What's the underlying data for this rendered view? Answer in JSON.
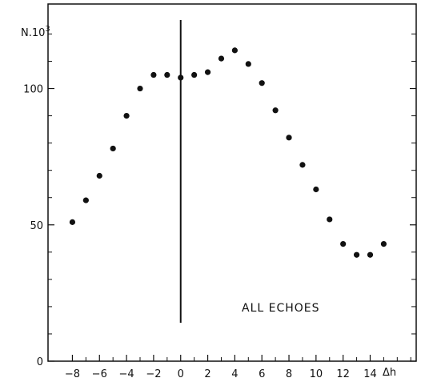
{
  "chart_data": {
    "type": "scatter",
    "title": "",
    "ylabel": "N.10",
    "ylabel_superscript": "3",
    "xlabel": "Δh",
    "xlim": [
      -9.8,
      17.4
    ],
    "ylim": [
      0,
      131
    ],
    "x_ticks": [
      -8,
      -6,
      -4,
      -2,
      0,
      2,
      4,
      6,
      8,
      10,
      12,
      14
    ],
    "x_minor_ticks": [
      -7,
      -5,
      -3,
      -1,
      1,
      3,
      5,
      7,
      9,
      11,
      13,
      15,
      16,
      17
    ],
    "y_ticks": [
      0,
      50,
      100
    ],
    "y_minor_ticks": [
      10,
      20,
      30,
      40,
      60,
      70,
      80,
      90,
      110,
      120
    ],
    "grid": false,
    "legend": "none",
    "annotation": "ALL  ECHOES",
    "vertical_line_at": 0,
    "points": [
      {
        "x": -8,
        "y": 51
      },
      {
        "x": -7,
        "y": 59
      },
      {
        "x": -6,
        "y": 68
      },
      {
        "x": -5,
        "y": 78
      },
      {
        "x": -4,
        "y": 90
      },
      {
        "x": -3,
        "y": 100
      },
      {
        "x": -2,
        "y": 105
      },
      {
        "x": -1,
        "y": 105
      },
      {
        "x": 0,
        "y": 104
      },
      {
        "x": 1,
        "y": 105
      },
      {
        "x": 2,
        "y": 106
      },
      {
        "x": 3,
        "y": 111
      },
      {
        "x": 4,
        "y": 114
      },
      {
        "x": 5,
        "y": 109
      },
      {
        "x": 6,
        "y": 102
      },
      {
        "x": 7,
        "y": 92
      },
      {
        "x": 8,
        "y": 82
      },
      {
        "x": 9,
        "y": 72
      },
      {
        "x": 10,
        "y": 63
      },
      {
        "x": 11,
        "y": 52
      },
      {
        "x": 12,
        "y": 43
      },
      {
        "x": 13,
        "y": 39
      },
      {
        "x": 14,
        "y": 39
      },
      {
        "x": 15,
        "y": 43
      }
    ]
  }
}
